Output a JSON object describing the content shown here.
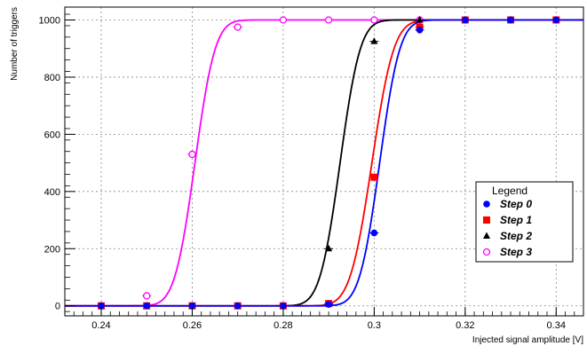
{
  "chart_data": {
    "type": "scatter",
    "title": "",
    "xlabel": "Injected signal amplitude [V]",
    "ylabel": "Number of triggers",
    "xlim": [
      0.232,
      0.346
    ],
    "ylim": [
      -35,
      1045
    ],
    "xticks": [
      0.24,
      0.26,
      0.28,
      0.3,
      0.32,
      0.34
    ],
    "xtick_labels": [
      "0.24",
      "0.26",
      "0.28",
      "0.3",
      "0.32",
      "0.34"
    ],
    "yticks": [
      0,
      200,
      400,
      600,
      800,
      1000
    ],
    "ytick_labels": [
      "0",
      "200",
      "400",
      "600",
      "800",
      "1000"
    ],
    "grid": true,
    "legend": {
      "title": "Legend",
      "position": "right"
    },
    "series": [
      {
        "name": "Step 0",
        "color": "#0000ff",
        "marker": "circle",
        "fit": {
          "mean": 0.3012,
          "sigma": 0.0035
        },
        "x": [
          0.24,
          0.25,
          0.26,
          0.27,
          0.28,
          0.29,
          0.3,
          0.31,
          0.32,
          0.33,
          0.34
        ],
        "y": [
          0,
          0,
          0,
          0,
          0,
          5,
          255,
          965,
          1000,
          1000,
          1000
        ]
      },
      {
        "name": "Step 1",
        "color": "#ff0000",
        "marker": "square",
        "fit": {
          "mean": 0.2995,
          "sigma": 0.0038
        },
        "x": [
          0.24,
          0.25,
          0.26,
          0.27,
          0.28,
          0.29,
          0.3,
          0.31,
          0.32,
          0.33,
          0.34
        ],
        "y": [
          0,
          0,
          0,
          0,
          0,
          8,
          450,
          975,
          1000,
          1000,
          1000
        ]
      },
      {
        "name": "Step 2",
        "color": "#000000",
        "marker": "triangle",
        "fit": {
          "mean": 0.2925,
          "sigma": 0.0035
        },
        "x": [
          0.24,
          0.25,
          0.26,
          0.27,
          0.28,
          0.29,
          0.3,
          0.31,
          0.32,
          0.33,
          0.34
        ],
        "y": [
          0,
          0,
          0,
          0,
          0,
          200,
          925,
          1000,
          1000,
          1000,
          1000
        ]
      },
      {
        "name": "Step 3",
        "color": "#ff00ff",
        "marker": "open-circle",
        "fit": {
          "mean": 0.2606,
          "sigma": 0.0035
        },
        "x": [
          0.24,
          0.25,
          0.26,
          0.27,
          0.28,
          0.29,
          0.3,
          0.31,
          0.32,
          0.33,
          0.34
        ],
        "y": [
          0,
          35,
          530,
          975,
          1000,
          1000,
          1000,
          1000,
          1000,
          1000,
          1000
        ]
      }
    ]
  }
}
